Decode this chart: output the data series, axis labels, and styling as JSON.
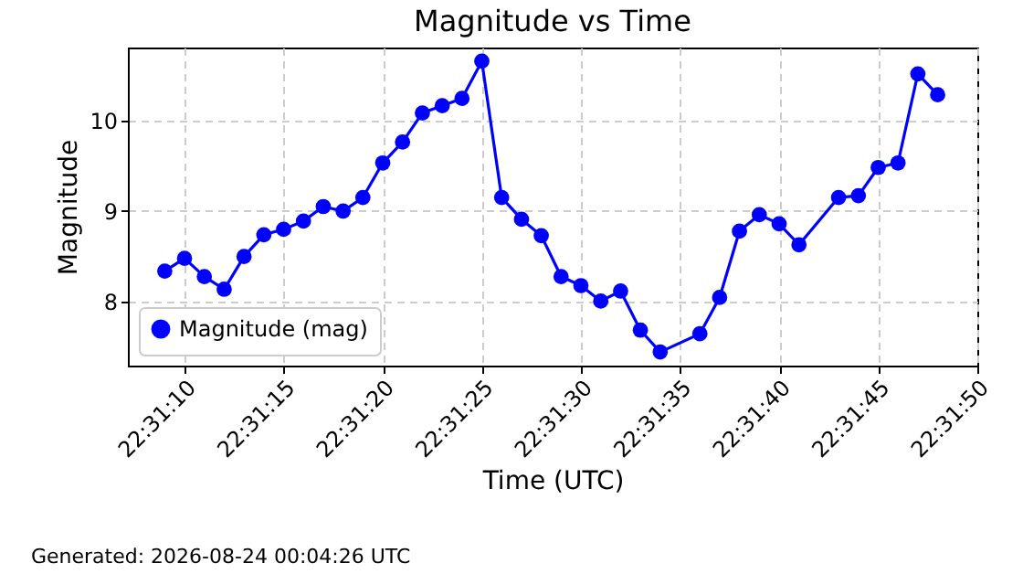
{
  "chart_data": {
    "type": "line",
    "title": "Magnitude vs Time",
    "xlabel": "Time (UTC)",
    "ylabel": "Magnitude",
    "x": [
      22.519167,
      22.519444,
      22.519722,
      22.52,
      22.520278,
      22.520556,
      22.520833,
      22.521111,
      22.521389,
      22.521667,
      22.521944,
      22.522222,
      22.5225,
      22.522778,
      22.523056,
      22.523333,
      22.523611,
      22.523889,
      22.524167,
      22.524444,
      22.524722,
      22.525,
      22.525278,
      22.525556,
      22.525833,
      22.526111,
      22.526667,
      22.526944,
      22.527222,
      22.5275,
      22.527778,
      22.528056,
      22.528611,
      22.528889,
      22.529167,
      22.529444,
      22.529722,
      22.53
    ],
    "series": [
      {
        "name": "Magnitude (mag)",
        "color": "#0000ff",
        "values": [
          8.34,
          8.48,
          8.28,
          8.14,
          8.5,
          8.74,
          8.8,
          8.89,
          9.05,
          9.0,
          9.15,
          9.53,
          9.76,
          10.08,
          10.16,
          10.24,
          10.65,
          9.15,
          8.91,
          8.73,
          8.28,
          8.18,
          8.01,
          8.12,
          7.69,
          7.45,
          7.65,
          8.05,
          8.78,
          8.96,
          8.86,
          8.63,
          9.15,
          9.17,
          9.48,
          9.53,
          10.51,
          10.28
        ]
      }
    ],
    "xlim": [
      22.51865,
      22.530556
    ],
    "xticks": [
      {
        "value": 22.519444,
        "label": "22:31:10"
      },
      {
        "value": 22.520833,
        "label": "22:31:15"
      },
      {
        "value": 22.522222,
        "label": "22:31:20"
      },
      {
        "value": 22.523611,
        "label": "22:31:25"
      },
      {
        "value": 22.525,
        "label": "22:31:30"
      },
      {
        "value": 22.526389,
        "label": "22:31:35"
      },
      {
        "value": 22.527778,
        "label": "22:31:40"
      },
      {
        "value": 22.529167,
        "label": "22:31:45"
      },
      {
        "value": 22.530556,
        "label": "22:31:50"
      }
    ],
    "ylim": [
      7.3,
      10.8
    ],
    "yticks": [
      8,
      9,
      10
    ],
    "grid": true,
    "legend": "bottom left",
    "marker": "circle",
    "line_style": "solid",
    "annotations": [
      "Generated: 2026-08-24 00:04:26 UTC"
    ]
  }
}
